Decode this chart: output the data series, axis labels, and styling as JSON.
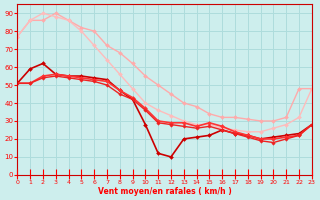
{
  "xlabel": "Vent moyen/en rafales ( km/h )",
  "xlim": [
    0,
    23
  ],
  "ylim": [
    0,
    95
  ],
  "yticks": [
    0,
    10,
    20,
    30,
    40,
    50,
    60,
    70,
    80,
    90
  ],
  "xticks": [
    0,
    1,
    2,
    3,
    4,
    5,
    6,
    7,
    8,
    9,
    10,
    11,
    12,
    13,
    14,
    15,
    16,
    17,
    18,
    19,
    20,
    21,
    22,
    23
  ],
  "bg_color": "#cdeeed",
  "grid_color": "#aedcdc",
  "lines": [
    {
      "x": [
        0,
        1,
        2,
        3,
        4,
        5,
        6,
        7,
        8,
        9,
        10,
        11,
        12,
        13,
        14,
        15,
        16,
        17,
        18,
        19,
        20,
        21,
        22,
        23
      ],
      "y": [
        77,
        86,
        86,
        90,
        86,
        82,
        80,
        72,
        68,
        62,
        55,
        50,
        45,
        40,
        38,
        34,
        32,
        32,
        31,
        30,
        30,
        32,
        48,
        48
      ],
      "color": "#ffaaaa",
      "lw": 1.0,
      "marker": "D",
      "ms": 2.0
    },
    {
      "x": [
        0,
        1,
        2,
        3,
        4,
        5,
        6,
        7,
        8,
        9,
        10,
        11,
        12,
        13,
        14,
        15,
        16,
        17,
        18,
        19,
        20,
        21,
        22,
        23
      ],
      "y": [
        77,
        86,
        90,
        88,
        86,
        80,
        72,
        64,
        56,
        48,
        40,
        36,
        33,
        30,
        28,
        28,
        26,
        25,
        24,
        24,
        26,
        28,
        32,
        48
      ],
      "color": "#ffbbbb",
      "lw": 1.0,
      "marker": "D",
      "ms": 2.0
    },
    {
      "x": [
        0,
        1,
        2,
        3,
        4,
        5,
        6,
        7,
        8,
        9,
        10,
        11,
        12,
        13,
        14,
        15,
        16,
        17,
        18,
        19,
        20,
        21,
        22,
        23
      ],
      "y": [
        51,
        59,
        62,
        56,
        55,
        55,
        54,
        53,
        47,
        42,
        28,
        12,
        10,
        20,
        21,
        22,
        25,
        23,
        22,
        20,
        21,
        22,
        23,
        28
      ],
      "color": "#cc0000",
      "lw": 1.2,
      "marker": "D",
      "ms": 2.0
    },
    {
      "x": [
        0,
        1,
        2,
        3,
        4,
        5,
        6,
        7,
        8,
        9,
        10,
        11,
        12,
        13,
        14,
        15,
        16,
        17,
        18,
        19,
        20,
        21,
        22,
        23
      ],
      "y": [
        51,
        51,
        55,
        56,
        55,
        54,
        53,
        52,
        47,
        43,
        37,
        30,
        29,
        29,
        27,
        29,
        27,
        24,
        22,
        20,
        20,
        21,
        22,
        28
      ],
      "color": "#ff3333",
      "lw": 1.2,
      "marker": "D",
      "ms": 2.0
    },
    {
      "x": [
        0,
        1,
        2,
        3,
        4,
        5,
        6,
        7,
        8,
        9,
        10,
        11,
        12,
        13,
        14,
        15,
        16,
        17,
        18,
        19,
        20,
        21,
        22,
        23
      ],
      "y": [
        51,
        51,
        54,
        55,
        54,
        53,
        52,
        50,
        45,
        42,
        36,
        29,
        28,
        27,
        26,
        27,
        25,
        23,
        21,
        19,
        18,
        20,
        22,
        28
      ],
      "color": "#ee2222",
      "lw": 1.0,
      "marker": "D",
      "ms": 1.8
    }
  ]
}
